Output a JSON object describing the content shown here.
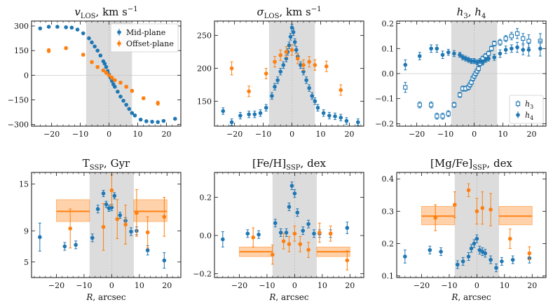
{
  "colors": {
    "mid": "#1f77b4",
    "offset": "#ff7f0e",
    "shade": "#dcdcdc",
    "zero": "#c8c8c8"
  },
  "shade_range": [
    -8,
    8
  ],
  "chart_data": [
    {
      "id": "vlos",
      "type": "scatter",
      "title": "vLOS, km s⁻¹",
      "xlim": [
        -27,
        25
      ],
      "ylim": [
        -310,
        330
      ],
      "xticks": [
        -20,
        -10,
        0,
        10,
        20
      ],
      "yticks": [
        -300,
        -150,
        0,
        150,
        300
      ],
      "ytick_labels": [
        "−300",
        "−150",
        "0",
        "150",
        "300"
      ],
      "zero_line": true,
      "legend": {
        "position": "top-right",
        "entries": [
          {
            "label": "Mid-plane",
            "series": "Mid-plane",
            "marker": "dot"
          },
          {
            "label": "Offset-plane",
            "series": "Offset-plane",
            "marker": "dot"
          }
        ]
      },
      "series": [
        {
          "name": "Mid-plane",
          "color": "#1f77b4",
          "marker": "dot",
          "x": [
            -24,
            -21,
            -18,
            -15,
            -13,
            -11,
            -9,
            -7,
            -6,
            -5,
            -4,
            -3,
            -2,
            -1.5,
            -1,
            -0.5,
            0,
            0.5,
            1,
            1.5,
            2,
            3,
            4,
            5,
            6,
            7,
            8,
            9,
            11,
            13,
            15,
            17,
            19,
            23
          ],
          "y": [
            285,
            295,
            295,
            292,
            290,
            278,
            255,
            225,
            200,
            175,
            150,
            120,
            85,
            70,
            50,
            25,
            5,
            -15,
            -35,
            -55,
            -70,
            -100,
            -130,
            -155,
            -180,
            -205,
            -230,
            -245,
            -270,
            -280,
            -283,
            -285,
            -278,
            -265
          ],
          "err": [
            4,
            4,
            4,
            4,
            4,
            4,
            4,
            4,
            4,
            4,
            4,
            4,
            4,
            4,
            4,
            4,
            4,
            4,
            4,
            4,
            4,
            4,
            4,
            4,
            4,
            4,
            4,
            4,
            4,
            4,
            4,
            4,
            4,
            4
          ]
        },
        {
          "name": "Offset-plane",
          "color": "#ff7f0e",
          "marker": "dot",
          "x": [
            -21,
            -15,
            -9,
            -6,
            -4,
            -2,
            -1,
            0,
            1,
            2,
            4,
            6,
            8,
            12,
            17
          ],
          "y": [
            150,
            165,
            125,
            80,
            50,
            30,
            15,
            0,
            -15,
            -30,
            -45,
            -70,
            -95,
            -140,
            -170
          ],
          "err": [
            12,
            8,
            8,
            8,
            8,
            8,
            8,
            8,
            8,
            8,
            8,
            8,
            8,
            8,
            12
          ]
        }
      ]
    },
    {
      "id": "sigma",
      "type": "scatter",
      "title": "σLOS, km s⁻¹",
      "xlim": [
        -27,
        25
      ],
      "ylim": [
        112,
        272
      ],
      "xticks": [
        -20,
        -10,
        0,
        10,
        20
      ],
      "yticks": [
        150,
        200,
        250
      ],
      "ytick_labels": [
        "150",
        "200",
        "250"
      ],
      "zero_line": false,
      "series": [
        {
          "name": "Mid-plane",
          "color": "#1f77b4",
          "marker": "dot",
          "x": [
            -24,
            -21,
            -18,
            -15,
            -13,
            -11,
            -9,
            -7,
            -6,
            -5,
            -4,
            -3,
            -2,
            -1.5,
            -1,
            -0.5,
            0,
            0.5,
            1,
            1.5,
            2,
            3,
            4,
            5,
            6,
            7,
            8,
            9,
            11,
            13,
            15,
            17,
            19,
            23
          ],
          "y": [
            135,
            118,
            128,
            130,
            130,
            132,
            140,
            158,
            172,
            182,
            195,
            205,
            215,
            225,
            235,
            248,
            262,
            255,
            240,
            228,
            218,
            205,
            195,
            182,
            170,
            158,
            150,
            140,
            132,
            128,
            127,
            125,
            120,
            118
          ],
          "err": [
            5,
            5,
            5,
            5,
            5,
            5,
            5,
            5,
            5,
            5,
            5,
            5,
            5,
            5,
            5,
            5,
            5,
            5,
            5,
            5,
            5,
            5,
            5,
            5,
            5,
            5,
            5,
            5,
            5,
            5,
            5,
            5,
            5,
            5
          ]
        },
        {
          "name": "Offset-plane",
          "color": "#ff7f0e",
          "marker": "dot",
          "x": [
            -21,
            -15,
            -9,
            -6,
            -4,
            -2,
            0,
            2,
            4,
            6,
            8,
            12,
            17
          ],
          "y": [
            200,
            165,
            192,
            210,
            220,
            225,
            228,
            215,
            205,
            210,
            205,
            203,
            167
          ],
          "err": [
            10,
            8,
            8,
            8,
            8,
            8,
            8,
            8,
            8,
            8,
            8,
            8,
            8
          ]
        }
      ]
    },
    {
      "id": "h3h4",
      "type": "scatter",
      "title": "h3, h4",
      "xlim": [
        -27,
        25
      ],
      "ylim": [
        -0.21,
        0.21
      ],
      "xticks": [
        -20,
        -10,
        0,
        10,
        20
      ],
      "yticks": [
        -0.2,
        -0.1,
        0.0,
        0.1,
        0.2
      ],
      "ytick_labels": [
        "−0.2",
        "−0.1",
        "0.0",
        "0.1",
        "0.2"
      ],
      "zero_line": true,
      "legend": {
        "position": "bottom-right",
        "entries": [
          {
            "label": "h3",
            "series": "h3",
            "marker": "square"
          },
          {
            "label": "h4",
            "series": "h4",
            "marker": "dot"
          }
        ]
      },
      "series": [
        {
          "name": "h3",
          "color": "#1f77b4",
          "marker": "square",
          "x": [
            -24,
            -19,
            -15,
            -13,
            -11,
            -9,
            -7,
            -5,
            -4,
            -3,
            -2,
            -1.5,
            -1,
            -0.5,
            0,
            0.5,
            1,
            1.5,
            2,
            3,
            4,
            5,
            6,
            7,
            9,
            11,
            13,
            15,
            17,
            19,
            23
          ],
          "y": [
            -0.055,
            -0.125,
            -0.125,
            -0.17,
            -0.17,
            -0.16,
            -0.125,
            -0.085,
            -0.06,
            -0.06,
            -0.055,
            -0.045,
            -0.035,
            -0.02,
            -0.01,
            0.0,
            0.01,
            0.02,
            0.04,
            0.06,
            0.07,
            0.08,
            0.1,
            0.12,
            0.125,
            0.14,
            0.15,
            0.16,
            0.14,
            0.13,
            0.13
          ],
          "err": [
            0.02,
            0.012,
            0.012,
            0.012,
            0.012,
            0.012,
            0.01,
            0.01,
            0.01,
            0.01,
            0.01,
            0.01,
            0.01,
            0.01,
            0.01,
            0.01,
            0.01,
            0.01,
            0.01,
            0.01,
            0.01,
            0.01,
            0.01,
            0.01,
            0.012,
            0.012,
            0.015,
            0.02,
            0.02,
            0.025,
            0.03
          ]
        },
        {
          "name": "h4",
          "color": "#1f77b4",
          "marker": "dot",
          "x": [
            -24,
            -19,
            -15,
            -13,
            -11,
            -9,
            -7,
            -5,
            -4,
            -3,
            -2,
            -1,
            0,
            1,
            2,
            3,
            4,
            5,
            7,
            9,
            11,
            13,
            15,
            17,
            19,
            23
          ],
          "y": [
            0.035,
            0.07,
            0.1,
            0.1,
            0.075,
            0.085,
            0.08,
            0.075,
            0.065,
            0.06,
            0.055,
            0.05,
            0.05,
            0.045,
            0.05,
            0.045,
            0.055,
            0.06,
            0.065,
            0.08,
            0.095,
            0.1,
            0.105,
            0.095,
            0.095,
            0.1
          ],
          "err": [
            0.02,
            0.015,
            0.015,
            0.015,
            0.015,
            0.012,
            0.012,
            0.01,
            0.01,
            0.01,
            0.01,
            0.01,
            0.01,
            0.01,
            0.01,
            0.01,
            0.01,
            0.01,
            0.012,
            0.015,
            0.015,
            0.015,
            0.02,
            0.02,
            0.025,
            0.03
          ]
        }
      ]
    },
    {
      "id": "tssp",
      "type": "scatter",
      "title": "TSSP, Gyr",
      "xlim": [
        -29,
        25
      ],
      "ylim": [
        3,
        16.5
      ],
      "xticks": [
        -20,
        -10,
        0,
        10,
        20
      ],
      "yticks": [
        5,
        9,
        15
      ],
      "ytick_labels": [
        "5",
        "9",
        "15"
      ],
      "zero_line": false,
      "bands": [
        {
          "x": [
            -20,
            -8
          ],
          "y": 11.5,
          "lo": 10.2,
          "hi": 13.0,
          "color": "#ff7f0e"
        },
        {
          "x": [
            8,
            20
          ],
          "y": 11.5,
          "lo": 10.2,
          "hi": 13.0,
          "color": "#ff7f0e"
        }
      ],
      "series": [
        {
          "name": "Mid-plane",
          "color": "#1f77b4",
          "marker": "dot",
          "x": [
            -26,
            -17,
            -13,
            -7,
            -5,
            -3,
            -2,
            -1,
            0,
            1,
            3,
            5,
            7,
            9,
            13,
            19
          ],
          "y": [
            8.2,
            7.0,
            7.2,
            8.1,
            11.8,
            13.8,
            12.4,
            11.9,
            12.0,
            13.5,
            11.0,
            10.3,
            8.9,
            9.0,
            6.5,
            5.2
          ],
          "err": [
            1.8,
            0.5,
            0.5,
            0.5,
            0.5,
            0.4,
            0.4,
            0.4,
            0.4,
            0.4,
            0.4,
            0.4,
            0.5,
            0.5,
            0.6,
            1.0
          ]
        },
        {
          "name": "Offset-plane",
          "color": "#ff7f0e",
          "marker": "dot",
          "x": [
            -15,
            -3,
            0,
            2,
            5,
            9,
            13,
            19
          ],
          "y": [
            9.3,
            9.5,
            14.2,
            10.5,
            9.8,
            11.3,
            8.8,
            10.8
          ],
          "err": [
            2.5,
            3.0,
            2.0,
            2.5,
            2.5,
            3.0,
            2.0,
            2.5
          ]
        }
      ]
    },
    {
      "id": "feh",
      "type": "scatter",
      "title": "[Fe/H]SSP, dex",
      "xlim": [
        -29,
        25
      ],
      "ylim": [
        -0.22,
        0.33
      ],
      "xticks": [
        -20,
        -10,
        0,
        10,
        20
      ],
      "yticks": [
        -0.2,
        0.0,
        0.2
      ],
      "ytick_labels": [
        "−0.2",
        "0.0",
        "0.2"
      ],
      "zero_line": false,
      "bands": [
        {
          "x": [
            -20,
            -8
          ],
          "y": -0.085,
          "lo": -0.11,
          "hi": -0.06,
          "color": "#ff7f0e"
        },
        {
          "x": [
            8,
            20
          ],
          "y": -0.085,
          "lo": -0.11,
          "hi": -0.06,
          "color": "#ff7f0e"
        }
      ],
      "series": [
        {
          "name": "Mid-plane",
          "color": "#1f77b4",
          "marker": "dot",
          "x": [
            -26,
            -17,
            -13,
            -7,
            -5,
            -3,
            -2,
            -1,
            0,
            1,
            3,
            5,
            7,
            9,
            13,
            19
          ],
          "y": [
            -0.02,
            0.01,
            0.005,
            0.065,
            0.015,
            0.015,
            0.15,
            0.26,
            0.22,
            0.12,
            0.025,
            0.06,
            0.01,
            0.01,
            0.01,
            0.04
          ],
          "err": [
            0.04,
            0.02,
            0.02,
            0.02,
            0.02,
            0.02,
            0.02,
            0.02,
            0.02,
            0.02,
            0.02,
            0.02,
            0.02,
            0.02,
            0.02,
            0.03
          ]
        },
        {
          "name": "Offset-plane",
          "color": "#ff7f0e",
          "marker": "dot",
          "x": [
            -15,
            -8,
            -4,
            -2,
            0,
            2,
            5,
            9,
            13,
            19
          ],
          "y": [
            -0.01,
            -0.1,
            -0.03,
            -0.045,
            0.01,
            -0.045,
            -0.075,
            0.015,
            0.01,
            -0.13
          ],
          "err": [
            0.05,
            0.05,
            0.04,
            0.04,
            0.04,
            0.04,
            0.04,
            0.05,
            0.04,
            0.05
          ]
        }
      ]
    },
    {
      "id": "mgfe",
      "type": "scatter",
      "title": "[Mg/Fe]SSP, dex",
      "xlim": [
        -29,
        25
      ],
      "ylim": [
        0.095,
        0.42
      ],
      "xticks": [
        -20,
        -10,
        0,
        10,
        20
      ],
      "yticks": [
        0.1,
        0.2,
        0.3,
        0.4
      ],
      "ytick_labels": [
        "0.1",
        "0.2",
        "0.3",
        "0.4"
      ],
      "zero_line": false,
      "bands": [
        {
          "x": [
            -20,
            -8
          ],
          "y": 0.285,
          "lo": 0.258,
          "hi": 0.315,
          "color": "#ff7f0e"
        },
        {
          "x": [
            8,
            20
          ],
          "y": 0.285,
          "lo": 0.258,
          "hi": 0.315,
          "color": "#ff7f0e"
        }
      ],
      "series": [
        {
          "name": "Mid-plane",
          "color": "#1f77b4",
          "marker": "dot",
          "x": [
            -26,
            -17,
            -13,
            -7,
            -5,
            -3,
            -2,
            -1,
            0,
            1,
            2,
            3,
            5,
            7,
            9,
            13,
            19
          ],
          "y": [
            0.16,
            0.18,
            0.175,
            0.135,
            0.145,
            0.16,
            0.185,
            0.2,
            0.215,
            0.18,
            0.175,
            0.17,
            0.15,
            0.125,
            0.145,
            0.15,
            0.155
          ],
          "err": [
            0.02,
            0.012,
            0.012,
            0.012,
            0.012,
            0.012,
            0.012,
            0.012,
            0.012,
            0.012,
            0.012,
            0.012,
            0.012,
            0.012,
            0.012,
            0.012,
            0.015
          ]
        },
        {
          "name": "Offset-plane",
          "color": "#ff7f0e",
          "marker": "dot",
          "x": [
            -15,
            -8,
            -3,
            0,
            2,
            5,
            12,
            19
          ],
          "y": [
            0.28,
            0.32,
            0.365,
            0.3,
            0.31,
            0.305,
            0.215,
            0.17
          ],
          "err": [
            0.04,
            0.04,
            0.02,
            0.04,
            0.05,
            0.05,
            0.03,
            0.02
          ]
        }
      ]
    }
  ],
  "xlabel": "R, arcsec",
  "titles": [
    {
      "main": "v",
      "sub": "LOS",
      "sup": "",
      "unit": ", km s",
      "unit_sup": "−1",
      "italic_main": true
    },
    {
      "main": "σ",
      "sub": "LOS",
      "sup": "",
      "unit": ", km s",
      "unit_sup": "−1",
      "italic_main": true
    },
    {
      "main": "h",
      "sub": "3",
      "sup": "",
      "unit": ", ",
      "extra_main": "h",
      "extra_sub": "4",
      "italic_main": true
    },
    {
      "main": "T",
      "sub": "SSP",
      "sup": "",
      "unit": ", Gyr",
      "italic_main": false
    },
    {
      "main": "[Fe/H]",
      "sub": "SSP",
      "sup": "",
      "unit": ", dex",
      "italic_main": false
    },
    {
      "main": "[Mg/Fe]",
      "sub": "SSP",
      "sup": "",
      "unit": ", dex",
      "italic_main": false
    }
  ]
}
